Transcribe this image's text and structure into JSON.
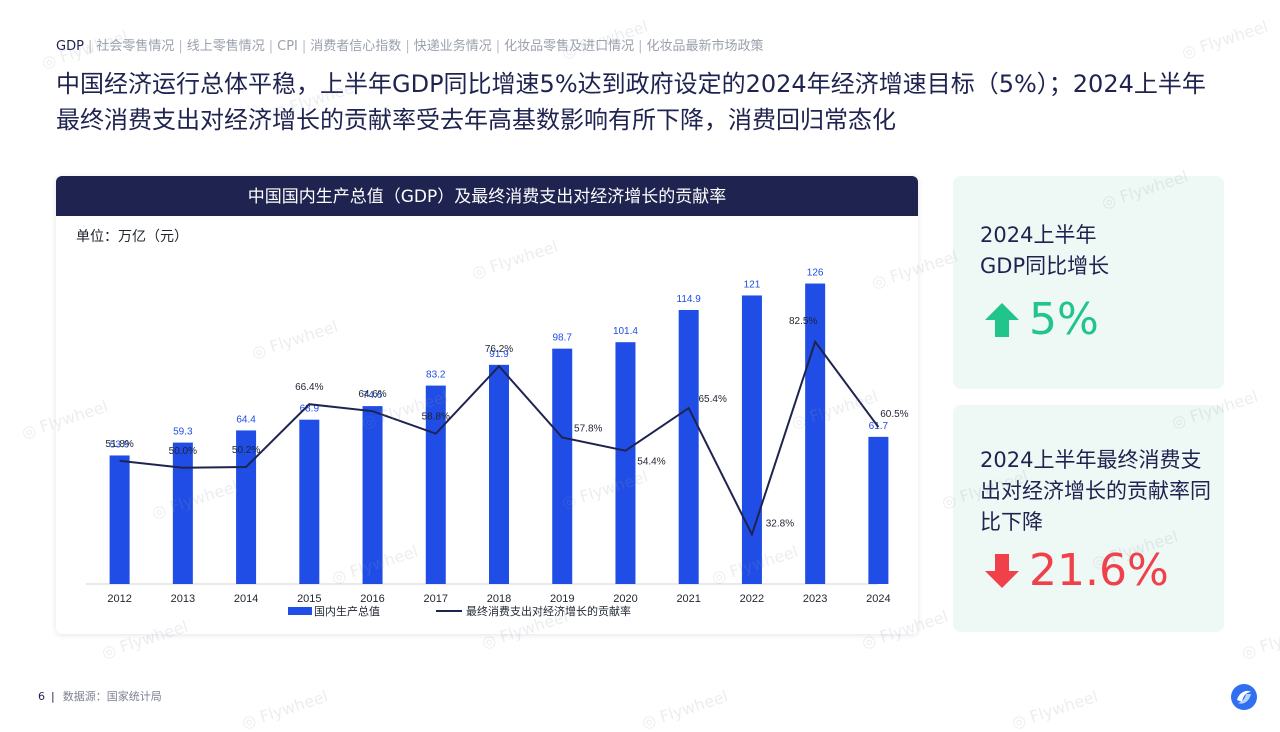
{
  "nav": {
    "items": [
      "GDP",
      "社会零售情况",
      "线上零售情况",
      "CPI",
      "消费者信心指数",
      "快递业务情况",
      "化妆品零售及进口情况",
      "化妆品最新市场政策"
    ],
    "active_index": 0
  },
  "headline": "中国经济运行总体平稳，上半年GDP同比增速5%达到政府设定的2024年经济增速目标（5%）；2024上半年最终消费支出对经济增长的贡献率受去年高基数影响有所下降，消费回归常态化",
  "chart_data": {
    "type": "bar+line",
    "title": "中国国内生产总值（GDP）及最终消费支出对经济增长的贡献率",
    "unit_label": "单位：万亿（元）",
    "categories": [
      "2012",
      "2013",
      "2014",
      "2015",
      "2016",
      "2017",
      "2018",
      "2019",
      "2020",
      "2021",
      "2022",
      "2023",
      "2024"
    ],
    "bar_series": {
      "name": "国内生产总值",
      "color": "#1f4de6",
      "values": [
        53.9,
        59.3,
        64.4,
        68.9,
        74.6,
        83.2,
        91.9,
        98.7,
        101.4,
        114.9,
        121,
        126,
        61.7
      ],
      "labels": [
        "53.9",
        "59.3",
        "64.4",
        "68.9",
        "74.6",
        "83.2",
        "91.9",
        "98.7",
        "101.4",
        "114.9",
        "121",
        "126",
        "61.7"
      ]
    },
    "line_series": {
      "name": "最终消费支出对经济增长的贡献率",
      "color": "#1e2350",
      "values": [
        51.8,
        50.0,
        50.2,
        66.4,
        64.6,
        58.8,
        76.2,
        57.8,
        54.4,
        65.4,
        32.8,
        82.5,
        60.5
      ],
      "labels": [
        "51.8%",
        "50.0%",
        "50.2%",
        "66.4%",
        "64.6%",
        "58.8%",
        "76.2%",
        "57.8%",
        "54.4%",
        "65.4%",
        "32.8%",
        "82.5%",
        "60.5%"
      ]
    },
    "legend_position": "bottom-center",
    "grid": false
  },
  "cards": [
    {
      "title": "2024上半年\nGDP同比增长",
      "value": "5%",
      "direction": "up",
      "color": "#21c48a"
    },
    {
      "title": "2024上半年最终消费支出对经济增长的贡献率同比下降",
      "value": "21.6%",
      "direction": "down",
      "color": "#f0404a"
    }
  ],
  "footer": {
    "page_number": "6",
    "source": "数据源：国家统计局"
  },
  "watermark": "Flywheel",
  "colors": {
    "navy": "#1e2350",
    "bar_blue": "#1f4de6",
    "green": "#21c48a",
    "red": "#f0404a"
  }
}
